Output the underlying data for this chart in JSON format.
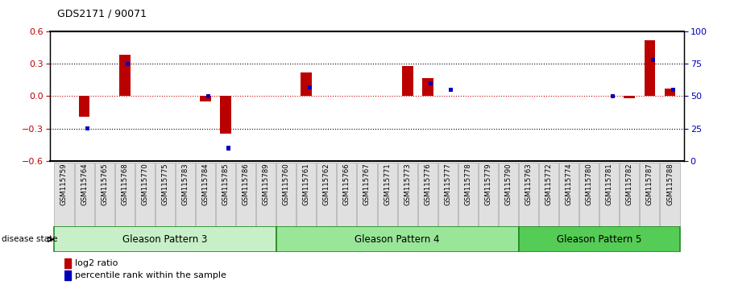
{
  "title": "GDS2171 / 90071",
  "samples": [
    "GSM115759",
    "GSM115764",
    "GSM115765",
    "GSM115768",
    "GSM115770",
    "GSM115775",
    "GSM115783",
    "GSM115784",
    "GSM115785",
    "GSM115786",
    "GSM115789",
    "GSM115760",
    "GSM115761",
    "GSM115762",
    "GSM115766",
    "GSM115767",
    "GSM115771",
    "GSM115773",
    "GSM115776",
    "GSM115777",
    "GSM115778",
    "GSM115779",
    "GSM115790",
    "GSM115763",
    "GSM115772",
    "GSM115774",
    "GSM115780",
    "GSM115781",
    "GSM115782",
    "GSM115787",
    "GSM115788"
  ],
  "log2_ratio": [
    0.0,
    -0.19,
    0.0,
    0.38,
    0.0,
    0.0,
    0.0,
    -0.05,
    -0.35,
    0.0,
    0.0,
    0.0,
    0.22,
    0.0,
    0.0,
    0.0,
    0.0,
    0.28,
    0.17,
    0.0,
    0.0,
    0.0,
    0.0,
    0.0,
    0.0,
    0.0,
    0.0,
    0.0,
    -0.02,
    0.52,
    0.07
  ],
  "percentile": [
    null,
    25,
    null,
    75,
    null,
    null,
    null,
    50,
    10,
    null,
    null,
    null,
    57,
    null,
    null,
    null,
    null,
    null,
    60,
    55,
    null,
    null,
    null,
    null,
    null,
    null,
    null,
    50,
    null,
    78,
    55
  ],
  "groups": [
    {
      "label": "Gleason Pattern 3",
      "start": 0,
      "end": 10
    },
    {
      "label": "Gleason Pattern 4",
      "start": 11,
      "end": 22
    },
    {
      "label": "Gleason Pattern 5",
      "start": 23,
      "end": 30
    }
  ],
  "group_colors": [
    "#c8f0c8",
    "#99e699",
    "#55cc55"
  ],
  "ylim_left": [
    -0.6,
    0.6
  ],
  "ylim_right": [
    0,
    100
  ],
  "yticks_left": [
    -0.6,
    -0.3,
    0.0,
    0.3,
    0.6
  ],
  "yticks_right": [
    0,
    25,
    50,
    75,
    100
  ],
  "bar_width": 0.55,
  "red_color": "#BB0000",
  "blue_color": "#0000BB",
  "zero_line_color": "#CC0000",
  "group_border_color": "#228822",
  "legend_red": "log2 ratio",
  "legend_blue": "percentile rank within the sample"
}
